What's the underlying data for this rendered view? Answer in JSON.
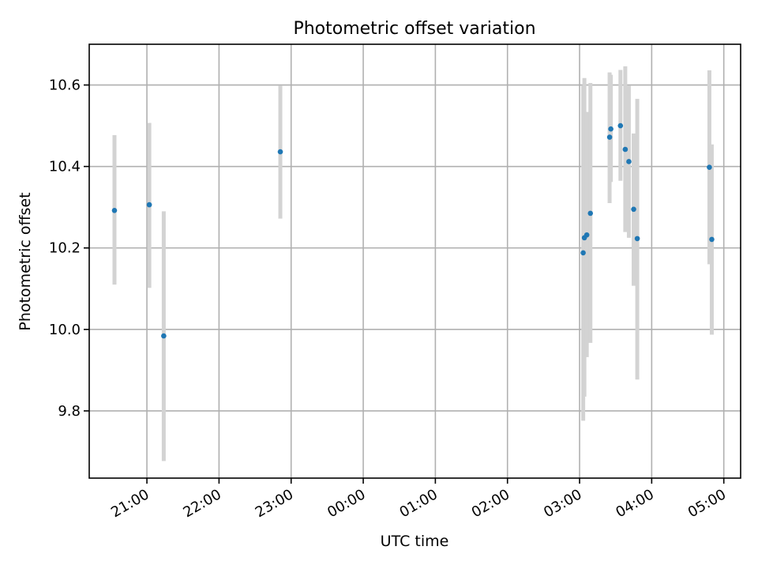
{
  "chart_data": {
    "type": "scatter",
    "title": "Photometric offset variation",
    "xlabel": "UTC time",
    "ylabel": "Photometric offset",
    "x_tick_labels": [
      "21:00",
      "22:00",
      "23:00",
      "00:00",
      "01:00",
      "02:00",
      "03:00",
      "04:00",
      "05:00"
    ],
    "y_tick_labels": [
      "9.8",
      "10.0",
      "10.2",
      "10.4",
      "10.6"
    ],
    "y_ticks": [
      9.8,
      10.0,
      10.2,
      10.4,
      10.6
    ],
    "xlim": [
      "20:12",
      "05:14"
    ],
    "ylim": [
      9.635,
      10.7
    ],
    "grid": true,
    "marker_color": "#1f77b4",
    "errorbar_color": "#d3d3d3",
    "points": [
      {
        "time": "20:33",
        "y": 10.292,
        "low": 10.11,
        "high": 10.477
      },
      {
        "time": "21:02",
        "y": 10.306,
        "low": 10.102,
        "high": 10.507
      },
      {
        "time": "21:14",
        "y": 9.984,
        "low": 9.677,
        "high": 10.29
      },
      {
        "time": "22:51",
        "y": 10.436,
        "low": 10.272,
        "high": 10.598
      },
      {
        "time": "03:03",
        "y": 10.188,
        "low": 9.776,
        "high": 10.598
      },
      {
        "time": "03:04",
        "y": 10.225,
        "low": 9.835,
        "high": 10.617
      },
      {
        "time": "03:06",
        "y": 10.232,
        "low": 9.932,
        "high": 10.534
      },
      {
        "time": "03:09",
        "y": 10.285,
        "low": 9.967,
        "high": 10.605
      },
      {
        "time": "03:25",
        "y": 10.472,
        "low": 10.31,
        "high": 10.631
      },
      {
        "time": "03:26",
        "y": 10.492,
        "low": 10.362,
        "high": 10.625
      },
      {
        "time": "03:34",
        "y": 10.5,
        "low": 10.365,
        "high": 10.637
      },
      {
        "time": "03:38",
        "y": 10.442,
        "low": 10.239,
        "high": 10.646
      },
      {
        "time": "03:41",
        "y": 10.412,
        "low": 10.225,
        "high": 10.598
      },
      {
        "time": "03:45",
        "y": 10.295,
        "low": 10.107,
        "high": 10.481
      },
      {
        "time": "03:48",
        "y": 10.223,
        "low": 9.877,
        "high": 10.566
      },
      {
        "time": "04:48",
        "y": 10.398,
        "low": 10.16,
        "high": 10.636
      },
      {
        "time": "04:50",
        "y": 10.221,
        "low": 9.987,
        "high": 10.454
      }
    ]
  }
}
